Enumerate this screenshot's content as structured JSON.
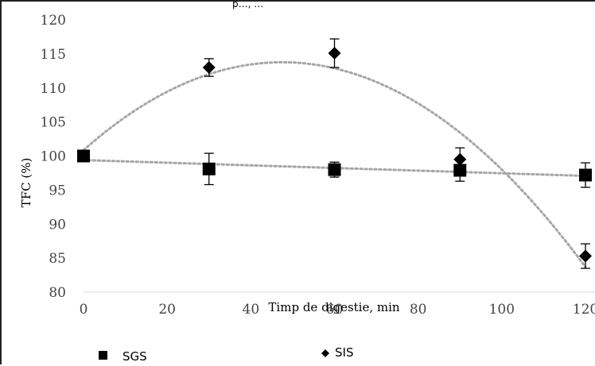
{
  "header": {
    "partial_title": "p…, …"
  },
  "chart_data": {
    "type": "scatter",
    "xlabel": "Timp de digestie, min",
    "ylabel": "TFC (%)",
    "xlim": [
      0,
      120
    ],
    "ylim": [
      80,
      120
    ],
    "x_ticks": [
      "0",
      "20",
      "40",
      "60",
      "80",
      "100",
      "120"
    ],
    "y_ticks": [
      "120",
      "115",
      "110",
      "105",
      "100",
      "95",
      "90",
      "85",
      "80"
    ],
    "grid": false,
    "legend_position": "bottom",
    "series": [
      {
        "name": "SGS",
        "marker": "square",
        "color": "#000000",
        "points": [
          {
            "x": 0,
            "y": 100,
            "err": 0
          },
          {
            "x": 30,
            "y": 98.1,
            "err": 2.3
          },
          {
            "x": 60,
            "y": 98.0,
            "err": 1.1
          },
          {
            "x": 90,
            "y": 97.9,
            "err": 1.6
          },
          {
            "x": 120,
            "y": 97.2,
            "err": 1.8
          }
        ],
        "trendline": {
          "type": "linear",
          "color": "#a6a6a6"
        }
      },
      {
        "name": "SIS",
        "marker": "diamond",
        "color": "#000000",
        "points": [
          {
            "x": 0,
            "y": 100,
            "err": 0
          },
          {
            "x": 30,
            "y": 113,
            "err": 1.3
          },
          {
            "x": 60,
            "y": 115.1,
            "err": 2.1
          },
          {
            "x": 90,
            "y": 99.5,
            "err": 1.7
          },
          {
            "x": 120,
            "y": 85.3,
            "err": 1.8
          }
        ],
        "trendline": {
          "type": "polynomial",
          "color": "#a6a6a6"
        }
      }
    ]
  }
}
